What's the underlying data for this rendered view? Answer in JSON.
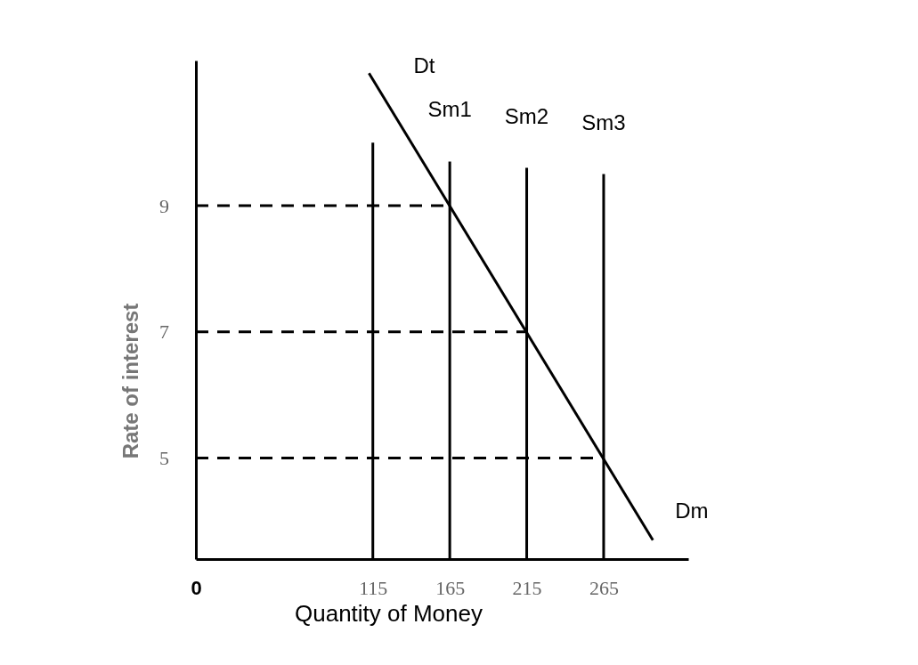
{
  "chart_data": {
    "type": "line",
    "xlabel": "Quantity of Money",
    "ylabel": "Rate of interest",
    "xlim": [
      0,
      320
    ],
    "xticks": [
      0,
      115,
      165,
      215,
      265
    ],
    "ylim": [
      3.4,
      11.3
    ],
    "yticks": [
      5,
      7,
      9
    ],
    "grid": false,
    "marker": "none",
    "line_style": "solid",
    "series": [
      {
        "color": "#000000",
        "x": [
          112.5,
          297
        ],
        "values": [
          11.1,
          3.7
        ]
      },
      {
        "color": "#000000",
        "x": [
          115,
          115
        ],
        "values": [
          3.4,
          10
        ]
      },
      {
        "name": "Sm1",
        "color": "#000000",
        "x": [
          165,
          165
        ],
        "values": [
          3.4,
          9.7
        ]
      },
      {
        "name": "Sm2",
        "color": "#000000",
        "x": [
          215,
          215
        ],
        "values": [
          3.4,
          9.6
        ]
      },
      {
        "name": "Sm3",
        "color": "#000000",
        "x": [
          265,
          265
        ],
        "values": [
          3.4,
          9.5
        ]
      },
      {
        "color": "#000000",
        "line_style": "dashed",
        "x": [
          0,
          165
        ],
        "values": [
          9,
          9
        ]
      },
      {
        "color": "#000000",
        "line_style": "dashed",
        "x": [
          0,
          215
        ],
        "values": [
          7,
          7
        ]
      },
      {
        "color": "#000000",
        "line_style": "dashed",
        "x": [
          0,
          265
        ],
        "values": [
          5,
          5
        ]
      }
    ],
    "annotations": [
      {
        "text": "Dt",
        "x": 112.5,
        "y": 11.1
      },
      {
        "text": "Dm",
        "x": 297,
        "y": 3.7
      }
    ]
  }
}
